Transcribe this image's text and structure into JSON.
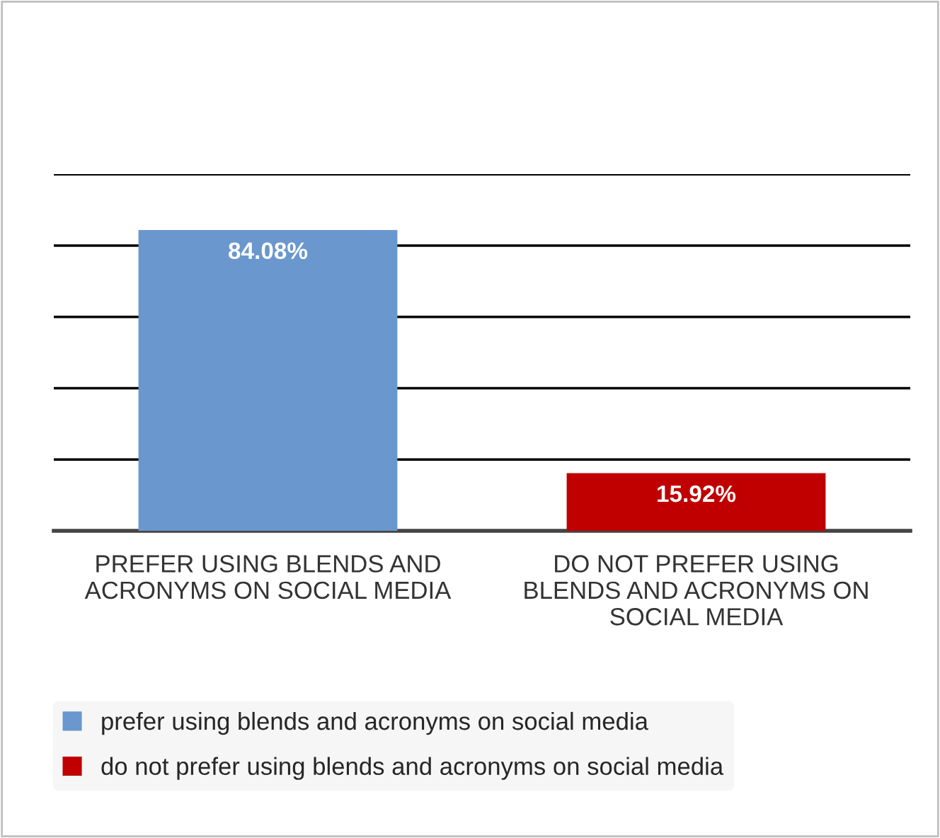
{
  "chart_data": {
    "type": "bar",
    "categories": [
      "PREFER USING BLENDS AND\nACRONYMS ON SOCIAL MEDIA",
      "DO NOT PREFER USING\nBLENDS AND ACRONYMS ON\nSOCIAL MEDIA"
    ],
    "series": [
      {
        "name": "prefer using blends and acronyms on social media",
        "color": "#6a97cd",
        "values": [
          84.08,
          null
        ],
        "value_labels": [
          "84.08%",
          null
        ]
      },
      {
        "name": "do not prefer using blends and acronyms on social media",
        "color": "#c00000",
        "values": [
          null,
          15.92
        ],
        "value_labels": [
          null,
          "15.92%"
        ]
      }
    ],
    "tick_labels": "x",
    "grid": "y",
    "legend": "bottom"
  }
}
